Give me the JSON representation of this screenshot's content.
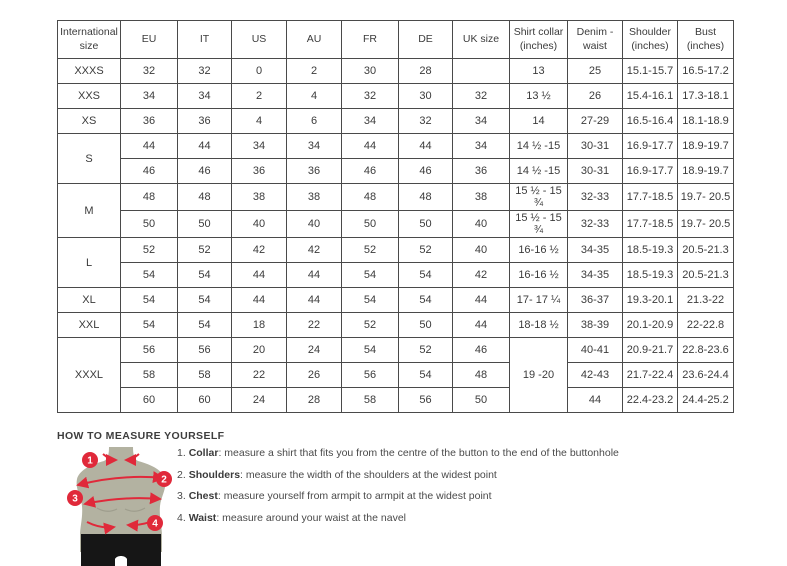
{
  "colors": {
    "accent_red": "#e0293a",
    "body_tan": "#b3b2a1",
    "shorts_black": "#161616",
    "border": "#4a4a4a",
    "text": "#3b3b3b"
  },
  "table": {
    "headers": [
      "International size",
      "EU",
      "IT",
      "US",
      "AU",
      "FR",
      "DE",
      "UK size",
      "Shirt collar (inches)",
      "Denim - waist",
      "Shoulder (inches)",
      "Bust (inches)"
    ],
    "col_keys": [
      "eu",
      "it",
      "us",
      "au",
      "fr",
      "de",
      "uk",
      "shirt-collar",
      "denim-waist",
      "shoulder",
      "bust"
    ],
    "groups": [
      {
        "label": "XXXS",
        "rows": [
          [
            "32",
            "32",
            "0",
            "2",
            "30",
            "28",
            "",
            "13",
            "25",
            "15.1-15.7",
            "16.5-17.2"
          ]
        ]
      },
      {
        "label": "XXS",
        "rows": [
          [
            "34",
            "34",
            "2",
            "4",
            "32",
            "30",
            "32",
            "13 ½",
            "26",
            "15.4-16.1",
            "17.3-18.1"
          ]
        ]
      },
      {
        "label": "XS",
        "rows": [
          [
            "36",
            "36",
            "4",
            "6",
            "34",
            "32",
            "34",
            "14",
            "27-29",
            "16.5-16.4",
            "18.1-18.9"
          ]
        ]
      },
      {
        "label": "S",
        "rows": [
          [
            "44",
            "44",
            "34",
            "34",
            "44",
            "44",
            "34",
            "14 ½ -15",
            "30-31",
            "16.9-17.7",
            "18.9-19.7"
          ],
          [
            "46",
            "46",
            "36",
            "36",
            "46",
            "46",
            "36",
            "14 ½ -15",
            "30-31",
            "16.9-17.7",
            "18.9-19.7"
          ]
        ]
      },
      {
        "label": "M",
        "rows": [
          [
            "48",
            "48",
            "38",
            "38",
            "48",
            "48",
            "38",
            "15 ½ - 15 ¾",
            "32-33",
            "17.7-18.5",
            "19.7- 20.5"
          ],
          [
            "50",
            "50",
            "40",
            "40",
            "50",
            "50",
            "40",
            "15 ½ - 15 ¾",
            "32-33",
            "17.7-18.5",
            "19.7- 20.5"
          ]
        ]
      },
      {
        "label": "L",
        "rows": [
          [
            "52",
            "52",
            "42",
            "42",
            "52",
            "52",
            "40",
            "16-16 ½",
            "34-35",
            "18.5-19.3",
            "20.5-21.3"
          ],
          [
            "54",
            "54",
            "44",
            "44",
            "54",
            "54",
            "42",
            "16-16 ½",
            "34-35",
            "18.5-19.3",
            "20.5-21.3"
          ]
        ]
      },
      {
        "label": "XL",
        "rows": [
          [
            "54",
            "54",
            "44",
            "44",
            "54",
            "54",
            "44",
            "17- 17 ¼",
            "36-37",
            "19.3-20.1",
            "21.3-22"
          ]
        ]
      },
      {
        "label": "XXL",
        "rows": [
          [
            "54",
            "54",
            "18",
            "22",
            "52",
            "50",
            "44",
            "18-18 ½",
            "38-39",
            "20.1-20.9",
            "22-22.8"
          ]
        ]
      },
      {
        "label": "XXXL",
        "collar_span": 3,
        "rows": [
          [
            "56",
            "56",
            "20",
            "24",
            "54",
            "52",
            "46",
            "19 -20",
            "40-41",
            "20.9-21.7",
            "22.8-23.6"
          ],
          [
            "58",
            "58",
            "22",
            "26",
            "56",
            "54",
            "48",
            null,
            "42-43",
            "21.7-22.4",
            "23.6-24.4"
          ],
          [
            "60",
            "60",
            "24",
            "28",
            "58",
            "56",
            "50",
            null,
            "44",
            "22.4-23.2",
            "24.4-25.2"
          ]
        ]
      }
    ]
  },
  "measure": {
    "title": "HOW TO MEASURE YOURSELF",
    "steps": [
      {
        "num": "1.",
        "label": "Collar",
        "text": ": measure a shirt that fits you from the centre of the button to the end of the buttonhole"
      },
      {
        "num": "2.",
        "label": "Shoulders",
        "text": ": measure the width of the shoulders at the widest point"
      },
      {
        "num": "3.",
        "label": "Chest",
        "text": ": measure yourself from armpit to armpit at the widest point"
      },
      {
        "num": "4.",
        "label": "Waist",
        "text": ": measure around your waist at the navel"
      }
    ]
  },
  "figure": {
    "badges": [
      "1",
      "2",
      "3",
      "4"
    ]
  }
}
